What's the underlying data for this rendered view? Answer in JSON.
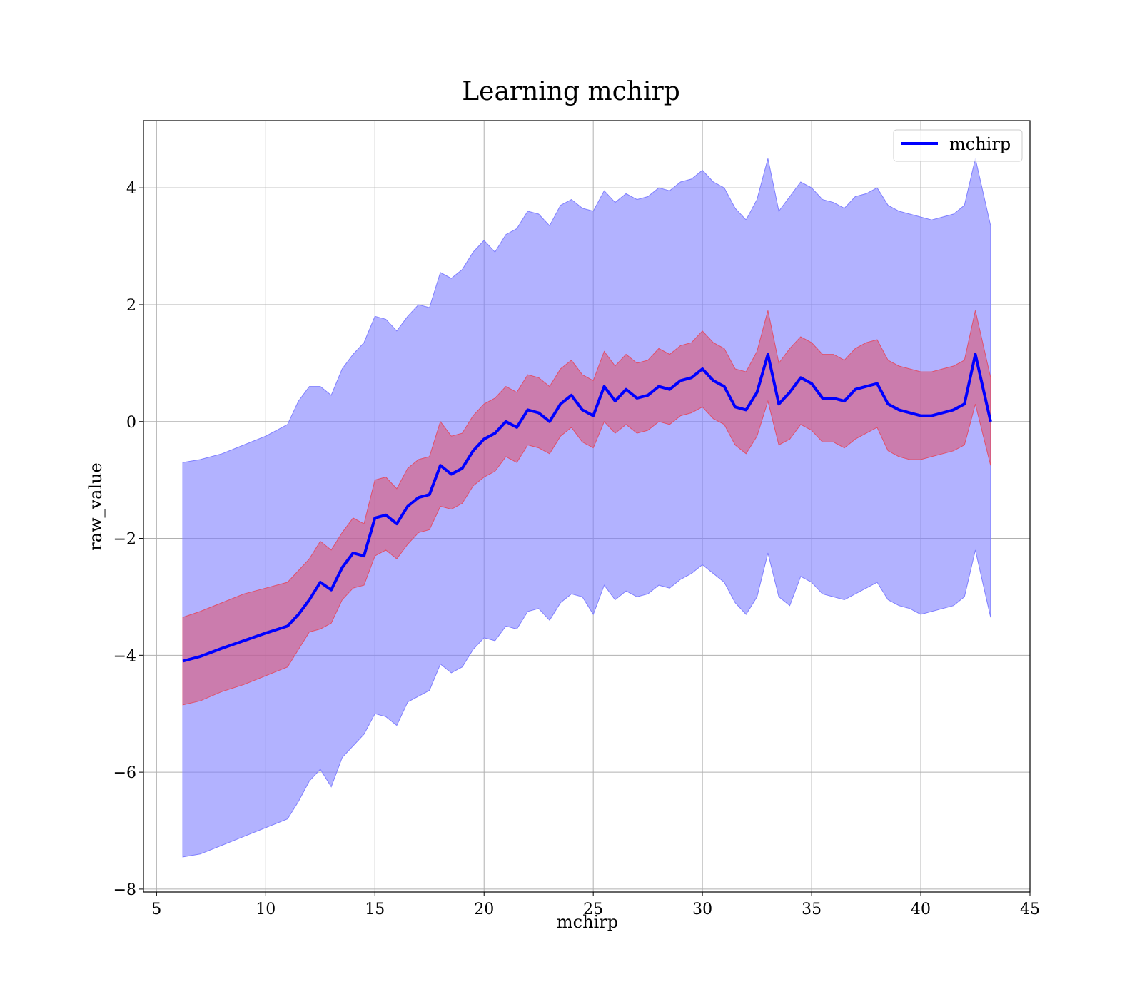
{
  "chart_data": {
    "type": "area",
    "title": "Learning mchirp",
    "xlabel": "mchirp",
    "ylabel": "raw_value",
    "xlim": [
      4.4,
      45
    ],
    "ylim": [
      -8.05,
      5.15
    ],
    "xticks": [
      5,
      10,
      15,
      20,
      25,
      30,
      35,
      40,
      45
    ],
    "yticks": [
      -8,
      -6,
      -4,
      -2,
      0,
      2,
      4
    ],
    "ytick_labels": [
      "−8",
      "−6",
      "−4",
      "−2",
      "0",
      "2",
      "4"
    ],
    "xtick_labels": [
      "5",
      "10",
      "15",
      "20",
      "25",
      "30",
      "35",
      "40",
      "45"
    ],
    "grid": true,
    "legend": {
      "position": "top-right",
      "entries": [
        "mchirp"
      ]
    },
    "colors": {
      "line": "#0000ff",
      "outer_band": "#7f7fff",
      "inner_band": "#e0506a",
      "grid": "#b0b0b0"
    },
    "series": [
      {
        "name": "mchirp",
        "x": [
          6.2,
          7,
          8,
          9,
          10,
          11,
          11.5,
          12,
          12.5,
          13,
          13.5,
          14,
          14.5,
          15,
          15.5,
          16,
          16.5,
          17,
          17.5,
          18,
          18.5,
          19,
          19.5,
          20,
          20.5,
          21,
          21.5,
          22,
          22.5,
          23,
          23.5,
          24,
          24.5,
          25,
          25.5,
          26,
          26.5,
          27,
          27.5,
          28,
          28.5,
          29,
          29.5,
          30,
          30.5,
          31,
          31.5,
          32,
          32.5,
          33,
          33.5,
          34,
          34.5,
          35,
          35.5,
          36,
          36.5,
          37,
          37.5,
          38,
          38.5,
          39,
          39.5,
          40,
          40.5,
          41,
          41.5,
          42,
          42.5,
          43.2
        ],
        "values": [
          -4.1,
          -4.02,
          -3.88,
          -3.75,
          -3.62,
          -3.5,
          -3.3,
          -3.05,
          -2.75,
          -2.88,
          -2.5,
          -2.25,
          -2.3,
          -1.65,
          -1.6,
          -1.75,
          -1.45,
          -1.3,
          -1.25,
          -0.75,
          -0.9,
          -0.8,
          -0.5,
          -0.3,
          -0.2,
          0.0,
          -0.1,
          0.2,
          0.15,
          0.0,
          0.3,
          0.45,
          0.2,
          0.1,
          0.6,
          0.35,
          0.55,
          0.4,
          0.45,
          0.6,
          0.55,
          0.7,
          0.75,
          0.9,
          0.7,
          0.6,
          0.25,
          0.2,
          0.5,
          1.15,
          0.3,
          0.5,
          0.75,
          0.65,
          0.4,
          0.4,
          0.35,
          0.55,
          0.6,
          0.65,
          0.3,
          0.2,
          0.15,
          0.1,
          0.1,
          0.15,
          0.2,
          0.3,
          1.15,
          0.0
        ],
        "inner_lower": [
          -4.85,
          -4.78,
          -4.62,
          -4.5,
          -4.35,
          -4.2,
          -3.9,
          -3.6,
          -3.55,
          -3.45,
          -3.05,
          -2.85,
          -2.8,
          -2.3,
          -2.2,
          -2.35,
          -2.1,
          -1.9,
          -1.85,
          -1.45,
          -1.5,
          -1.4,
          -1.1,
          -0.95,
          -0.85,
          -0.6,
          -0.7,
          -0.4,
          -0.45,
          -0.55,
          -0.25,
          -0.1,
          -0.35,
          -0.45,
          0.0,
          -0.2,
          -0.05,
          -0.2,
          -0.15,
          0.0,
          -0.05,
          0.1,
          0.15,
          0.25,
          0.05,
          -0.05,
          -0.4,
          -0.55,
          -0.25,
          0.35,
          -0.4,
          -0.3,
          -0.05,
          -0.15,
          -0.35,
          -0.35,
          -0.45,
          -0.3,
          -0.2,
          -0.1,
          -0.5,
          -0.6,
          -0.65,
          -0.65,
          -0.6,
          -0.55,
          -0.5,
          -0.4,
          0.3,
          -0.75
        ],
        "inner_upper": [
          -3.35,
          -3.25,
          -3.1,
          -2.95,
          -2.85,
          -2.75,
          -2.55,
          -2.35,
          -2.05,
          -2.2,
          -1.9,
          -1.65,
          -1.75,
          -1.0,
          -0.95,
          -1.15,
          -0.8,
          -0.65,
          -0.6,
          0.0,
          -0.25,
          -0.2,
          0.1,
          0.3,
          0.4,
          0.6,
          0.5,
          0.8,
          0.75,
          0.6,
          0.9,
          1.05,
          0.8,
          0.7,
          1.2,
          0.95,
          1.15,
          1.0,
          1.05,
          1.25,
          1.15,
          1.3,
          1.35,
          1.55,
          1.35,
          1.25,
          0.9,
          0.85,
          1.2,
          1.9,
          1.0,
          1.25,
          1.45,
          1.35,
          1.15,
          1.15,
          1.05,
          1.25,
          1.35,
          1.4,
          1.05,
          0.95,
          0.9,
          0.85,
          0.85,
          0.9,
          0.95,
          1.05,
          1.9,
          0.75
        ],
        "outer_lower": [
          -7.45,
          -7.4,
          -7.25,
          -7.1,
          -6.95,
          -6.8,
          -6.5,
          -6.15,
          -5.95,
          -6.25,
          -5.75,
          -5.55,
          -5.35,
          -5.0,
          -5.05,
          -5.2,
          -4.8,
          -4.7,
          -4.6,
          -4.15,
          -4.3,
          -4.2,
          -3.9,
          -3.7,
          -3.75,
          -3.5,
          -3.55,
          -3.25,
          -3.2,
          -3.4,
          -3.1,
          -2.95,
          -3.0,
          -3.3,
          -2.8,
          -3.05,
          -2.9,
          -3.0,
          -2.95,
          -2.8,
          -2.85,
          -2.7,
          -2.6,
          -2.45,
          -2.6,
          -2.75,
          -3.1,
          -3.3,
          -3.0,
          -2.25,
          -3.0,
          -3.15,
          -2.65,
          -2.75,
          -2.95,
          -3.0,
          -3.05,
          -2.95,
          -2.85,
          -2.75,
          -3.05,
          -3.15,
          -3.2,
          -3.3,
          -3.25,
          -3.2,
          -3.15,
          -3.0,
          -2.2,
          -3.35
        ],
        "outer_upper": [
          -0.7,
          -0.65,
          -0.55,
          -0.4,
          -0.25,
          -0.05,
          0.35,
          0.6,
          0.6,
          0.45,
          0.9,
          1.15,
          1.35,
          1.8,
          1.75,
          1.55,
          1.8,
          2.0,
          1.95,
          2.55,
          2.45,
          2.6,
          2.9,
          3.1,
          2.9,
          3.2,
          3.3,
          3.6,
          3.55,
          3.35,
          3.7,
          3.8,
          3.65,
          3.6,
          3.95,
          3.75,
          3.9,
          3.8,
          3.85,
          4.0,
          3.95,
          4.1,
          4.15,
          4.3,
          4.1,
          4.0,
          3.65,
          3.45,
          3.8,
          4.5,
          3.6,
          3.85,
          4.1,
          4.0,
          3.8,
          3.75,
          3.65,
          3.85,
          3.9,
          4.0,
          3.7,
          3.6,
          3.55,
          3.5,
          3.45,
          3.5,
          3.55,
          3.7,
          4.5,
          3.35
        ]
      }
    ]
  }
}
